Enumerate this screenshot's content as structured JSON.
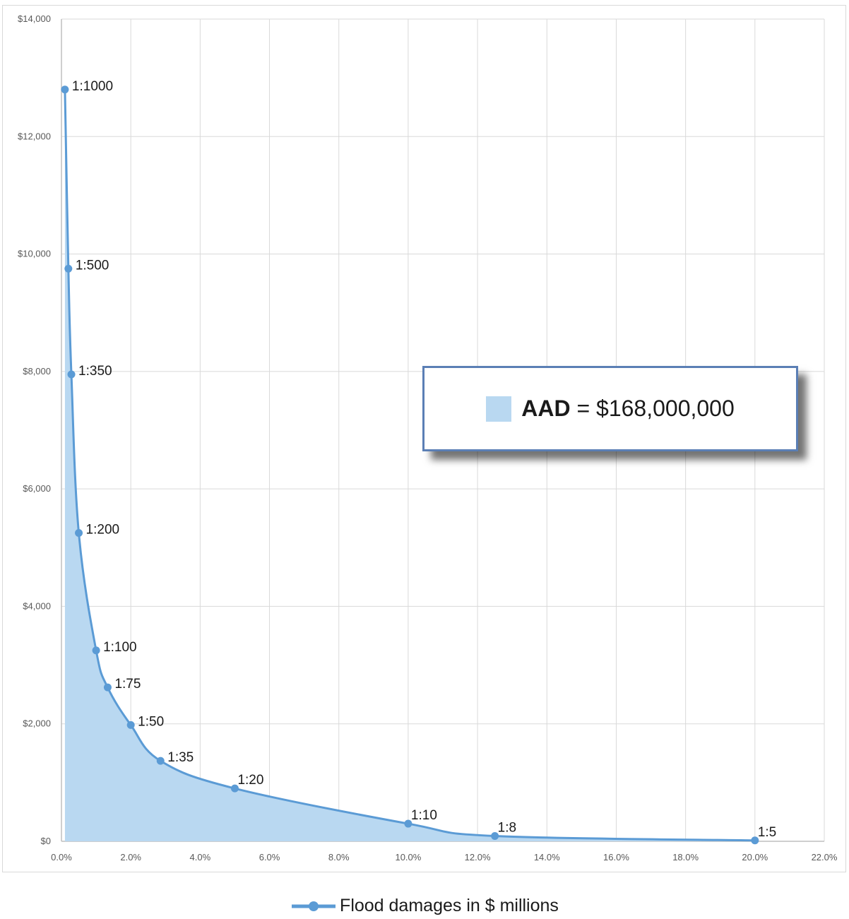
{
  "chart_data": {
    "type": "area",
    "y_tick_labels": [
      "$0",
      "$2,000",
      "$4,000",
      "$6,000",
      "$8,000",
      "$10,000",
      "$12,000",
      "$14,000"
    ],
    "x_tick_labels": [
      "0.0%",
      "2.0%",
      "4.0%",
      "6.0%",
      "8.0%",
      "10.0%",
      "12.0%",
      "14.0%",
      "16.0%",
      "18.0%",
      "20.0%",
      "22.0%"
    ],
    "xlim": [
      0,
      22
    ],
    "ylim": [
      0,
      14000
    ],
    "grid": true,
    "legend_position": "bottom",
    "series": [
      {
        "name": "Flood damages in $ millions",
        "points": [
          {
            "x": 0.1,
            "y": 12800,
            "label": "1:1000"
          },
          {
            "x": 0.2,
            "y": 9750,
            "label": "1:500"
          },
          {
            "x": 0.286,
            "y": 7950,
            "label": "1:350"
          },
          {
            "x": 0.5,
            "y": 5250,
            "label": "1:200"
          },
          {
            "x": 1.0,
            "y": 3250,
            "label": "1:100"
          },
          {
            "x": 1.333,
            "y": 2620,
            "label": "1:75"
          },
          {
            "x": 2.0,
            "y": 1980,
            "label": "1:50"
          },
          {
            "x": 2.857,
            "y": 1370,
            "label": "1:35"
          },
          {
            "x": 5.0,
            "y": 900,
            "label": "1:20"
          },
          {
            "x": 10.0,
            "y": 300,
            "label": "1:10"
          },
          {
            "x": 12.5,
            "y": 90,
            "label": "1:8"
          },
          {
            "x": 20.0,
            "y": 15,
            "label": "1:5"
          }
        ]
      }
    ],
    "annotation": {
      "label": "AAD",
      "value": "= $168,000,000"
    }
  },
  "colors": {
    "line": "#5b9bd5",
    "fill": "#b9d8f1",
    "grid": "#d9d9d9",
    "axis": "#bfbfbf"
  },
  "legend": {
    "label": "Flood damages in $ millions"
  }
}
